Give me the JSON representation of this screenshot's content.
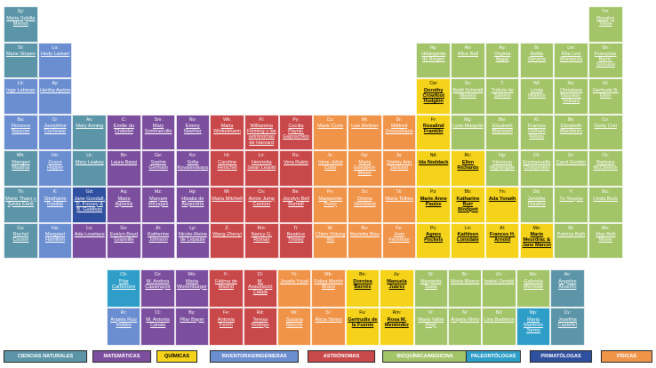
{
  "colors": {
    "natural": "#5b95a7",
    "math": "#7c4f9e",
    "chem": "#f5d31a",
    "invent": "#6b8ed0",
    "astro": "#c9484a",
    "bio": "#a4c46a",
    "paleo": "#2e9ec8",
    "prima": "#2f4f9f",
    "physics": "#f0944a"
  },
  "legend": [
    {
      "label": "CIENCIAS NATURALES",
      "cat": "natural",
      "text": "#ffffff"
    },
    {
      "label": "MATEMÁTICAS",
      "cat": "math",
      "text": "#ffffff"
    },
    {
      "label": "QUÍMICAS",
      "cat": "chem",
      "text": "#000000"
    },
    {
      "label": "INVENTORAS/INGENIERAS",
      "cat": "invent",
      "text": "#ffffff"
    },
    {
      "label": "ASTRÓNOMAS",
      "cat": "astro",
      "text": "#ffffff"
    },
    {
      "label": "BIOQUÍMICA/MEDICINA",
      "cat": "bio",
      "text": "#ffffff"
    },
    {
      "label": "PALEONTÓLOGAS",
      "cat": "paleo",
      "text": "#ffffff"
    },
    {
      "label": "PRIMATÓLOGAS",
      "cat": "prima",
      "text": "#ffffff"
    },
    {
      "label": "FÍSICAS",
      "cat": "physics",
      "text": "#ffffff"
    }
  ],
  "cells": [
    {
      "col": 0,
      "row": 0,
      "sym": "Sy:",
      "name": "Maria Sybilla Merian",
      "cat": "natural"
    },
    {
      "col": 0,
      "row": 1,
      "sym": "St:",
      "name": "Marie Stopes",
      "cat": "natural"
    },
    {
      "col": 1,
      "row": 1,
      "sym": "La:",
      "name": "Hedy Lamarr",
      "cat": "invent"
    },
    {
      "col": 0,
      "row": 2,
      "sym": "Lh:",
      "name": "Inge Lehman",
      "cat": "invent"
    },
    {
      "col": 1,
      "row": 2,
      "sym": "Ay:",
      "name": "Hertha Ayrton",
      "cat": "invent"
    },
    {
      "col": 0,
      "row": 3,
      "sym": "Ba:",
      "name": "Florence Bascom",
      "cat": "invent"
    },
    {
      "col": 1,
      "row": 3,
      "sym": "Cr:",
      "name": "Josephine Cochrane",
      "cat": "invent"
    },
    {
      "col": 0,
      "row": 4,
      "sym": "Mh:",
      "name": "Wangari Maathai",
      "cat": "natural"
    },
    {
      "col": 1,
      "row": 4,
      "sym": "Ho:",
      "name": "Grace Hopper",
      "cat": "invent"
    },
    {
      "col": 0,
      "row": 5,
      "sym": "Th:",
      "name": "Marie Tharp y Sylvia Earle",
      "cat": "natural"
    },
    {
      "col": 1,
      "row": 5,
      "sym": "K:",
      "name": "Stephanie Kwolek",
      "cat": "invent"
    },
    {
      "col": 0,
      "row": 6,
      "sym": "Ca:",
      "name": "Rachel Carson",
      "cat": "natural"
    },
    {
      "col": 1,
      "row": 6,
      "sym": "Ha:",
      "name": "Margaret Hamilton",
      "cat": "invent"
    },
    {
      "col": 2,
      "row": 3,
      "sym": "An:",
      "name": "Mary Anning",
      "cat": "natural"
    },
    {
      "col": 3,
      "row": 3,
      "sym": "C:",
      "name": "Emilie du Châtelet",
      "cat": "math"
    },
    {
      "col": 4,
      "row": 3,
      "sym": "Sm:",
      "name": "Mary Sommerville",
      "cat": "math"
    },
    {
      "col": 5,
      "row": 3,
      "sym": "No:",
      "name": "Emmy Noether",
      "cat": "math"
    },
    {
      "col": 6,
      "row": 3,
      "sym": "Wk:",
      "name": "Maria Winkelmann",
      "cat": "astro"
    },
    {
      "col": 7,
      "row": 3,
      "sym": "Fl:",
      "name": "Williamina Fleming y las astrónomas de Harvard",
      "cat": "astro"
    },
    {
      "col": 8,
      "row": 3,
      "sym": "Py:",
      "name": "Cecilia Payne-Gaposchkin",
      "cat": "astro"
    },
    {
      "col": 9,
      "row": 3,
      "sym": "Cu:",
      "name": "Marie Curie",
      "cat": "physics"
    },
    {
      "col": 10,
      "row": 3,
      "sym": "Mt:",
      "name": "Lise Meitner",
      "cat": "physics"
    },
    {
      "col": 11,
      "row": 3,
      "sym": "Dr:",
      "name": "Mildred Dresselhaus",
      "cat": "physics"
    },
    {
      "col": 2,
      "row": 4,
      "sym": "Lk:",
      "name": "Mary Leakey",
      "cat": "natural"
    },
    {
      "col": 3,
      "row": 4,
      "sym": "Bs:",
      "name": "Laura Bassi",
      "cat": "math"
    },
    {
      "col": 4,
      "row": 4,
      "sym": "Ge:",
      "name": "Sophie Germain",
      "cat": "math"
    },
    {
      "col": 5,
      "row": 4,
      "sym": "Ko:",
      "name": "Sofia Kovalevskaya",
      "cat": "math"
    },
    {
      "col": 6,
      "row": 4,
      "sym": "Hr:",
      "name": "Caroline Herschel",
      "cat": "astro"
    },
    {
      "col": 7,
      "row": 4,
      "sym": "Lv:",
      "name": "Henrietta Swan Leavitt",
      "cat": "astro"
    },
    {
      "col": 8,
      "row": 4,
      "sym": "Ru:",
      "name": "Vera Rubin",
      "cat": "astro"
    },
    {
      "col": 9,
      "row": 4,
      "sym": "Jc:",
      "name": "Irène Joliot Curie",
      "cat": "physics"
    },
    {
      "col": 10,
      "row": 4,
      "sym": "Gp:",
      "name": "Maria Goeppert-Mayer",
      "cat": "physics"
    },
    {
      "col": 11,
      "row": 4,
      "sym": "Ja:",
      "name": "Shirley Ann Jackson",
      "cat": "physics"
    },
    {
      "col": 2,
      "row": 5,
      "sym": "Gd:",
      "name": "Jane Goodall, D. Fossey & B. Galdikas",
      "cat": "prima"
    },
    {
      "col": 3,
      "row": 5,
      "sym": "Aq:",
      "name": "Maria Agnessi",
      "cat": "math"
    },
    {
      "col": 4,
      "row": 5,
      "sym": "Mz:",
      "name": "Maryam Mirzajani",
      "cat": "math"
    },
    {
      "col": 5,
      "row": 5,
      "sym": "Hp:",
      "name": "Hipatia de Alejandría",
      "cat": "math"
    },
    {
      "col": 6,
      "row": 5,
      "sym": "Mi:",
      "name": "Maria Mitchell",
      "cat": "astro"
    },
    {
      "col": 7,
      "row": 5,
      "sym": "Cn:",
      "name": "Annie Jump Cannon",
      "cat": "astro"
    },
    {
      "col": 8,
      "row": 5,
      "sym": "Be:",
      "name": "Jocelyn Bell Burnell",
      "cat": "astro"
    },
    {
      "col": 9,
      "row": 5,
      "sym": "Pe:",
      "name": "Marguerite Perey",
      "cat": "physics"
    },
    {
      "col": 10,
      "row": 5,
      "sym": "So:",
      "name": "Donna Strickland",
      "cat": "physics"
    },
    {
      "col": 11,
      "row": 5,
      "sym": "Tk:",
      "name": "Maria Telkes",
      "cat": "physics"
    },
    {
      "col": 2,
      "row": 6,
      "sym": "Lo:",
      "name": "Ada Lovelace",
      "cat": "math"
    },
    {
      "col": 3,
      "row": 6,
      "sym": "Gv:",
      "name": "Evelyn Boyd Granville",
      "cat": "math"
    },
    {
      "col": 4,
      "row": 6,
      "sym": "Jh:",
      "name": "Katherine Johnson",
      "cat": "math"
    },
    {
      "col": 5,
      "row": 6,
      "sym": "Lp:",
      "name": "Nicole-Reine de Lepaute",
      "cat": "math"
    },
    {
      "col": 6,
      "row": 6,
      "sym": "Z:",
      "name": "Wang Zhenyi",
      "cat": "astro"
    },
    {
      "col": 7,
      "row": 6,
      "sym": "Rm:",
      "name": "Nancy G. Roman",
      "cat": "astro"
    },
    {
      "col": 8,
      "row": 6,
      "sym": "Ti:",
      "name": "Beatrice Tinsley",
      "cat": "astro"
    },
    {
      "col": 9,
      "row": 6,
      "sym": "W:",
      "name": "Chien Shiung Wu",
      "cat": "physics"
    },
    {
      "col": 10,
      "row": 6,
      "sym": "Bu:",
      "name": "Marietta Blau",
      "cat": "physics"
    },
    {
      "col": 11,
      "row": 6,
      "sym": "Fe:",
      "name": "Joan Feynman",
      "cat": "physics"
    },
    {
      "col": 12,
      "row": 1,
      "sym": "Hg:",
      "name": "Hildegarda de Bingen",
      "cat": "bio"
    },
    {
      "col": 13,
      "row": 1,
      "sym": "Ab:",
      "name": "Alice Ball",
      "cat": "bio"
    },
    {
      "col": 14,
      "row": 1,
      "sym": "Ap:",
      "name": "Virginia Apgar",
      "cat": "bio"
    },
    {
      "col": 15,
      "row": 1,
      "sym": "St:",
      "name": "Nettie Stevens",
      "cat": "bio"
    },
    {
      "col": 16,
      "row": 1,
      "sym": "Lm:",
      "name": "Rita Levi Montalcini",
      "cat": "bio"
    },
    {
      "col": 12,
      "row": 2,
      "sym": "Cw:",
      "name": "Dorothy Crowfoot Hodgkin",
      "cat": "chem"
    },
    {
      "col": 13,
      "row": 2,
      "sym": "Sc:",
      "name": "Bodil Schmidt Nielsen",
      "cat": "bio"
    },
    {
      "col": 14,
      "row": 2,
      "sym": "T:",
      "name": "Trótula de Salerno",
      "cat": "bio"
    },
    {
      "col": 15,
      "row": 2,
      "sym": "Wt:",
      "name": "Linda Watkins",
      "cat": "bio"
    },
    {
      "col": 16,
      "row": 2,
      "sym": "Nu:",
      "name": "Christiane Nüsslein-Volhard",
      "cat": "bio"
    },
    {
      "col": 12,
      "row": 3,
      "sym": "Fr:",
      "name": "Rosalind Franklin",
      "cat": "chem"
    },
    {
      "col": 13,
      "row": 3,
      "sym": "Mg:",
      "name": "Lynn Margulis",
      "cat": "bio"
    },
    {
      "col": 14,
      "row": 3,
      "sym": "Bw:",
      "name": "Elizabeth Blackwell",
      "cat": "bio"
    },
    {
      "col": 15,
      "row": 3,
      "sym": "Kl:",
      "name": "Frances Oldham Kelsey",
      "cat": "bio"
    },
    {
      "col": 16,
      "row": 3,
      "sym": "Bk:",
      "name": "Elizabeth Blackburn",
      "cat": "bio"
    },
    {
      "col": 12,
      "row": 4,
      "sym": "Nd:",
      "name": "Ida Noddack",
      "cat": "chem"
    },
    {
      "col": 13,
      "row": 4,
      "sym": "Rc:",
      "name": "Ellen Richards",
      "cat": "chem"
    },
    {
      "col": 14,
      "row": 4,
      "sym": "Ng:",
      "name": "Florence Nightingale",
      "cat": "bio"
    },
    {
      "col": 15,
      "row": 4,
      "sym": "Ch:",
      "name": "Emmanuelle Charpentier",
      "cat": "bio"
    },
    {
      "col": 16,
      "row": 4,
      "sym": "Gr:",
      "name": "Carol Greider",
      "cat": "bio"
    },
    {
      "col": 12,
      "row": 5,
      "sym": "Pz:",
      "name": "Marie Anne Paulze",
      "cat": "chem"
    },
    {
      "col": 13,
      "row": 5,
      "sym": "Bb:",
      "name": "Katharine Burr Blodgett",
      "cat": "chem"
    },
    {
      "col": 14,
      "row": 5,
      "sym": "Yn:",
      "name": "Ada Yonath",
      "cat": "chem"
    },
    {
      "col": 15,
      "row": 5,
      "sym": "Dd:",
      "name": "Jennifer Doudna",
      "cat": "bio"
    },
    {
      "col": 16,
      "row": 5,
      "sym": "Y:",
      "name": "Tu Youyou",
      "cat": "bio"
    },
    {
      "col": 12,
      "row": 6,
      "sym": "Pc:",
      "name": "Agnes Pockels",
      "cat": "chem"
    },
    {
      "col": 13,
      "row": 6,
      "sym": "Ln:",
      "name": "Kathleen Lonsdale",
      "cat": "chem"
    },
    {
      "col": 14,
      "row": 6,
      "sym": "Al:",
      "name": "Frances H. Arnold",
      "cat": "chem"
    },
    {
      "col": 15,
      "row": 6,
      "sym": "Me:",
      "name": "Marie Meurdrac & Jane Marcet",
      "cat": "chem"
    },
    {
      "col": 16,
      "row": 6,
      "sym": "Bt:",
      "name": "Patricia Bath",
      "cat": "bio"
    },
    {
      "col": 17,
      "row": 0,
      "sym": "Yw:",
      "name": "Rosalyn Yalow",
      "cat": "bio"
    },
    {
      "col": 17,
      "row": 1,
      "sym": "Sn:",
      "name": "Françoise Barré-Sinoussi",
      "cat": "bio"
    },
    {
      "col": 17,
      "row": 2,
      "sym": "El:",
      "name": "Gertrude B. Elion",
      "cat": "bio"
    },
    {
      "col": 17,
      "row": 3,
      "sym": "Co:",
      "name": "Gerty Cori",
      "cat": "bio"
    },
    {
      "col": 17,
      "row": 4,
      "sym": "Ck:",
      "name": "Barbara McClintock",
      "cat": "bio"
    },
    {
      "col": 17,
      "row": 5,
      "sym": "Bu:",
      "name": "Linda Buck",
      "cat": "bio"
    },
    {
      "col": 17,
      "row": 6,
      "sym": "Ms:",
      "name": "May Britt Moser",
      "cat": "bio"
    }
  ],
  "bottom": [
    {
      "col": 0,
      "row": 0,
      "sym": "Cb:",
      "name": "Pilar Carbonero",
      "cat": "paleo"
    },
    {
      "col": 1,
      "row": 0,
      "sym": "Cs:",
      "name": "M. Andrea Casamayor",
      "cat": "math"
    },
    {
      "col": 2,
      "row": 0,
      "sym": "Wo:",
      "name": "Maria Wonenburger",
      "cat": "math"
    },
    {
      "col": 3,
      "row": 0,
      "sym": "F:",
      "name": "Fátima de Madrid",
      "cat": "astro"
    },
    {
      "col": 4,
      "row": 0,
      "sym": "Cl:",
      "name": "M. Assumpció Català",
      "cat": "astro"
    },
    {
      "col": 5,
      "row": 0,
      "sym": "Yz:",
      "name": "Josefa Yzuel",
      "cat": "physics"
    },
    {
      "col": 6,
      "row": 0,
      "sym": "Mb:",
      "name": "Felisa Martín Bravo",
      "cat": "physics"
    },
    {
      "col": 7,
      "row": 0,
      "sym": "Bn:",
      "name": "Dorotea Barnés",
      "cat": "chem"
    },
    {
      "col": 8,
      "row": 0,
      "sym": "Ju:",
      "name": "Manuela Juárez",
      "cat": "chem"
    },
    {
      "col": 9,
      "row": 0,
      "sym": "Sl:",
      "name": "Margarita Salas",
      "cat": "bio"
    },
    {
      "col": 10,
      "row": 0,
      "sym": "Bc:",
      "name": "Maria Blasco",
      "cat": "bio"
    },
    {
      "col": 11,
      "row": 0,
      "sym": "Zn:",
      "name": "Isabel Zendal",
      "cat": "bio"
    },
    {
      "col": 12,
      "row": 0,
      "sym": "Mo:",
      "name": "Gabriela Morreale",
      "cat": "bio"
    },
    {
      "col": 13,
      "row": 0,
      "sym": "Av:",
      "name": "Ángeles Alvariño",
      "cat": "natural"
    },
    {
      "col": 0,
      "row": 1,
      "sym": "Rr:",
      "name": "Ángela Ruiz Robles",
      "cat": "invent"
    },
    {
      "col": 1,
      "row": 1,
      "sym": "Ct:",
      "name": "M. Antonia Canals",
      "cat": "math"
    },
    {
      "col": 2,
      "row": 1,
      "sym": "By:",
      "name": "Pilar Bayer",
      "cat": "math"
    },
    {
      "col": 3,
      "row": 1,
      "sym": "Fe:",
      "name": "Antonia Ferrín",
      "cat": "astro"
    },
    {
      "col": 4,
      "row": 1,
      "sym": "Rd:",
      "name": "Teresa Rodrigo",
      "cat": "astro"
    },
    {
      "col": 5,
      "row": 1,
      "sym": "Mr:",
      "name": "Susana Marcos",
      "cat": "physics"
    },
    {
      "col": 6,
      "row": 1,
      "sym": "Sr:",
      "name": "Alicia Sintes",
      "cat": "physics"
    },
    {
      "col": 7,
      "row": 1,
      "sym": "Fu:",
      "name": "Gertrudis de la Fuente",
      "cat": "chem"
    },
    {
      "col": 8,
      "row": 1,
      "sym": "Rm:",
      "name": "Rosa M. Menéndez",
      "cat": "chem"
    },
    {
      "col": 9,
      "row": 1,
      "sym": "Vr:",
      "name": "Maria Vallet Regí",
      "cat": "bio"
    },
    {
      "col": 10,
      "row": 1,
      "sym": "Ni:",
      "name": "Ángela Nieto",
      "cat": "bio"
    },
    {
      "col": 11,
      "row": 1,
      "sym": "Bd:",
      "name": "Lina Badimón",
      "cat": "bio"
    },
    {
      "col": 12,
      "row": 1,
      "sym": "Mp:",
      "name": "Maria Martinón Torres",
      "cat": "paleo"
    },
    {
      "col": 13,
      "row": 1,
      "sym": "Cv:",
      "name": "Josefina Castellví",
      "cat": "natural"
    }
  ]
}
